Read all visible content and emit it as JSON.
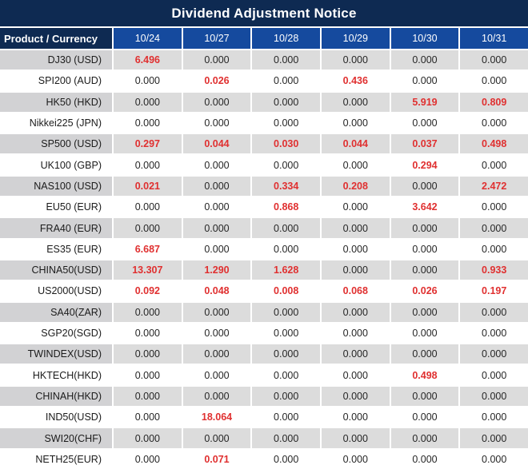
{
  "chart_data": {
    "type": "table",
    "title": "Dividend Adjustment Notice",
    "columns": [
      "Product / Currency",
      "10/24",
      "10/27",
      "10/28",
      "10/29",
      "10/30",
      "10/31"
    ],
    "rows": [
      {
        "product": "DJ30 (USD)",
        "values": [
          "6.496",
          "0.000",
          "0.000",
          "0.000",
          "0.000",
          "0.000"
        ]
      },
      {
        "product": "SPI200 (AUD)",
        "values": [
          "0.000",
          "0.026",
          "0.000",
          "0.436",
          "0.000",
          "0.000"
        ]
      },
      {
        "product": "HK50 (HKD)",
        "values": [
          "0.000",
          "0.000",
          "0.000",
          "0.000",
          "5.919",
          "0.809"
        ]
      },
      {
        "product": "Nikkei225 (JPN)",
        "values": [
          "0.000",
          "0.000",
          "0.000",
          "0.000",
          "0.000",
          "0.000"
        ]
      },
      {
        "product": "SP500 (USD)",
        "values": [
          "0.297",
          "0.044",
          "0.030",
          "0.044",
          "0.037",
          "0.498"
        ]
      },
      {
        "product": "UK100 (GBP)",
        "values": [
          "0.000",
          "0.000",
          "0.000",
          "0.000",
          "0.294",
          "0.000"
        ]
      },
      {
        "product": "NAS100 (USD)",
        "values": [
          "0.021",
          "0.000",
          "0.334",
          "0.208",
          "0.000",
          "2.472"
        ]
      },
      {
        "product": "EU50 (EUR)",
        "values": [
          "0.000",
          "0.000",
          "0.868",
          "0.000",
          "3.642",
          "0.000"
        ]
      },
      {
        "product": "FRA40 (EUR)",
        "values": [
          "0.000",
          "0.000",
          "0.000",
          "0.000",
          "0.000",
          "0.000"
        ]
      },
      {
        "product": "ES35 (EUR)",
        "values": [
          "6.687",
          "0.000",
          "0.000",
          "0.000",
          "0.000",
          "0.000"
        ]
      },
      {
        "product": "CHINA50(USD)",
        "values": [
          "13.307",
          "1.290",
          "1.628",
          "0.000",
          "0.000",
          "0.933"
        ]
      },
      {
        "product": "US2000(USD)",
        "values": [
          "0.092",
          "0.048",
          "0.008",
          "0.068",
          "0.026",
          "0.197"
        ]
      },
      {
        "product": "SA40(ZAR)",
        "values": [
          "0.000",
          "0.000",
          "0.000",
          "0.000",
          "0.000",
          "0.000"
        ]
      },
      {
        "product": "SGP20(SGD)",
        "values": [
          "0.000",
          "0.000",
          "0.000",
          "0.000",
          "0.000",
          "0.000"
        ]
      },
      {
        "product": "TWINDEX(USD)",
        "values": [
          "0.000",
          "0.000",
          "0.000",
          "0.000",
          "0.000",
          "0.000"
        ]
      },
      {
        "product": "HKTECH(HKD)",
        "values": [
          "0.000",
          "0.000",
          "0.000",
          "0.000",
          "0.498",
          "0.000"
        ]
      },
      {
        "product": "CHINAH(HKD)",
        "values": [
          "0.000",
          "0.000",
          "0.000",
          "0.000",
          "0.000",
          "0.000"
        ]
      },
      {
        "product": "IND50(USD)",
        "values": [
          "0.000",
          "18.064",
          "0.000",
          "0.000",
          "0.000",
          "0.000"
        ]
      },
      {
        "product": "SWI20(CHF)",
        "values": [
          "0.000",
          "0.000",
          "0.000",
          "0.000",
          "0.000",
          "0.000"
        ]
      },
      {
        "product": "NETH25(EUR)",
        "values": [
          "0.000",
          "0.071",
          "0.000",
          "0.000",
          "0.000",
          "0.000"
        ]
      }
    ],
    "layout": {
      "zero_value_color": "black",
      "nonzero_value_color": "red-bold",
      "alternating_row_shading": "even rows gray, odd rows white"
    }
  },
  "colors": {
    "title-bg": "#0e2a52",
    "header-bg": "#154a9e",
    "row-alt-bg": "#dcdcdc",
    "label-alt-bg": "#d2d2d4",
    "highlight": "#e03030",
    "text": "#262626"
  }
}
